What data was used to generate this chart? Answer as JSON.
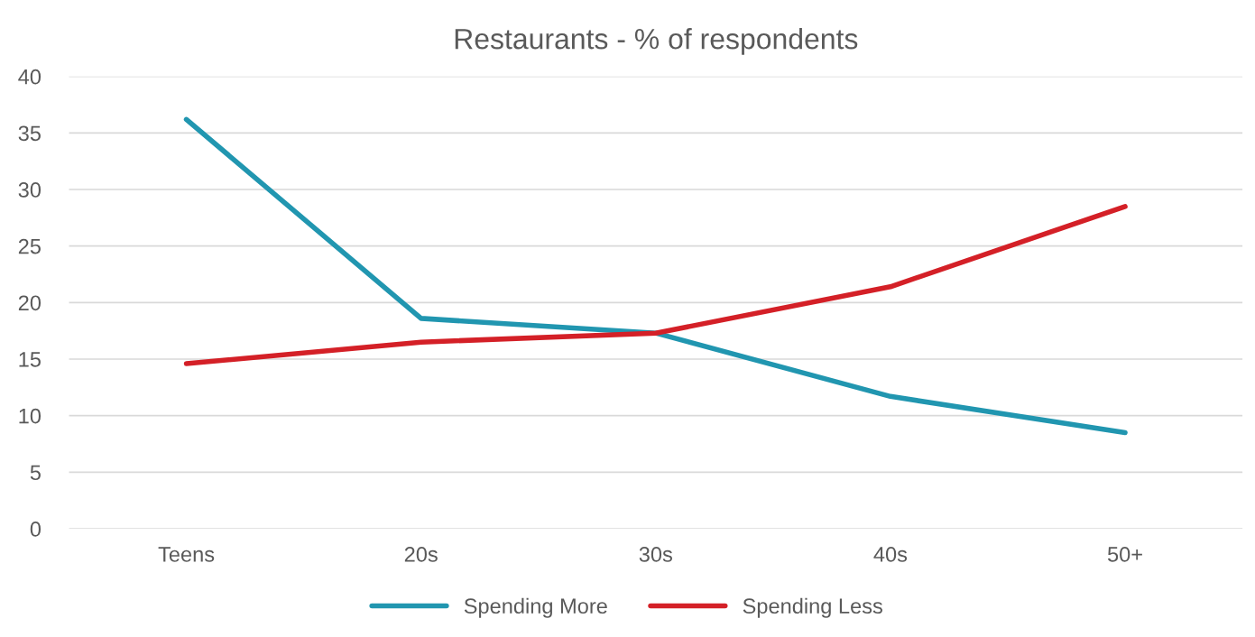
{
  "chart_data": {
    "type": "line",
    "title": "Restaurants - % of respondents",
    "categories": [
      "Teens",
      "20s",
      "30s",
      "40s",
      "50+"
    ],
    "series": [
      {
        "name": "Spending More",
        "color": "#2196b0",
        "values": [
          36.2,
          18.6,
          17.3,
          11.7,
          8.5
        ]
      },
      {
        "name": "Spending Less",
        "color": "#d42027",
        "values": [
          14.6,
          16.5,
          17.3,
          21.4,
          28.5
        ]
      }
    ],
    "ylim": [
      0,
      40
    ],
    "yticks": [
      0,
      5,
      10,
      15,
      20,
      25,
      30,
      35,
      40
    ],
    "grid": "y",
    "legend": "bottom",
    "marker": "none",
    "line_style": "solid"
  }
}
